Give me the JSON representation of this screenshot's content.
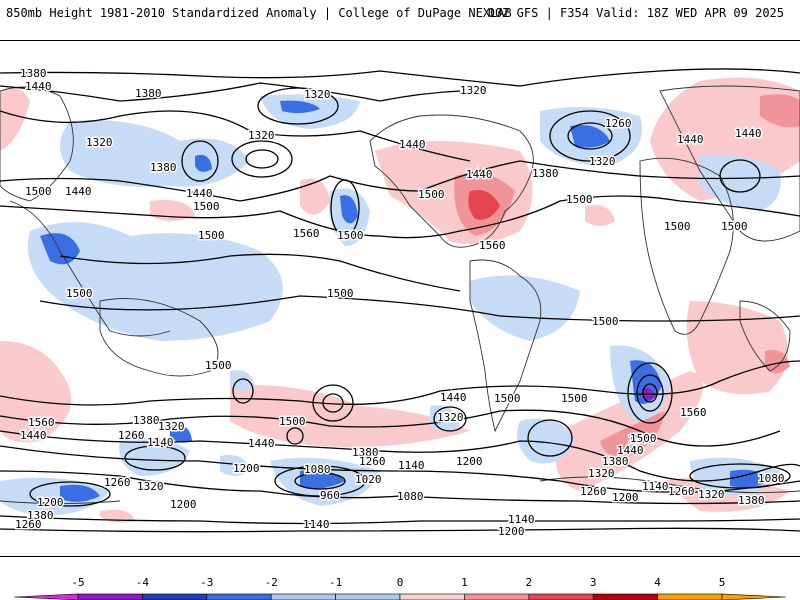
{
  "header": {
    "left": "850mb Height 1981-2010 Standardized Anomaly | College of DuPage NEXLAB",
    "right": "00Z GFS | F354 Valid: 18Z WED APR 09 2025"
  },
  "contour_labels": [
    {
      "text": "1380"
    },
    {
      "text": "1440"
    },
    {
      "text": "1380"
    },
    {
      "text": "1320"
    },
    {
      "text": "1320"
    },
    {
      "text": "1380"
    },
    {
      "text": "1320"
    },
    {
      "text": "1440"
    },
    {
      "text": "1500"
    },
    {
      "text": "1500"
    },
    {
      "text": "1440"
    },
    {
      "text": "1500"
    },
    {
      "text": "1560"
    },
    {
      "text": "1500"
    },
    {
      "text": "1320"
    },
    {
      "text": "1440"
    },
    {
      "text": "1500"
    },
    {
      "text": "1440"
    },
    {
      "text": "1560"
    },
    {
      "text": "1260"
    },
    {
      "text": "1320"
    },
    {
      "text": "1380"
    },
    {
      "text": "1500"
    },
    {
      "text": "1440"
    },
    {
      "text": "1440"
    },
    {
      "text": "1500"
    },
    {
      "text": "1500"
    },
    {
      "text": "1500"
    },
    {
      "text": "1500"
    },
    {
      "text": "1500"
    },
    {
      "text": "1500"
    },
    {
      "text": "1560"
    },
    {
      "text": "1440"
    },
    {
      "text": "1380"
    },
    {
      "text": "1320"
    },
    {
      "text": "1260"
    },
    {
      "text": "1140"
    },
    {
      "text": "1200"
    },
    {
      "text": "1260"
    },
    {
      "text": "1320"
    },
    {
      "text": "1200"
    },
    {
      "text": "1380"
    },
    {
      "text": "1260"
    },
    {
      "text": "1200"
    },
    {
      "text": "1080"
    },
    {
      "text": "1020"
    },
    {
      "text": "960"
    },
    {
      "text": "1080"
    },
    {
      "text": "1140"
    },
    {
      "text": "1500"
    },
    {
      "text": "1440"
    },
    {
      "text": "1440"
    },
    {
      "text": "1380"
    },
    {
      "text": "1260"
    },
    {
      "text": "1140"
    },
    {
      "text": "1320"
    },
    {
      "text": "1200"
    },
    {
      "text": "1500"
    },
    {
      "text": "1440"
    },
    {
      "text": "1380"
    },
    {
      "text": "1320"
    },
    {
      "text": "1260"
    },
    {
      "text": "1200"
    },
    {
      "text": "1140"
    },
    {
      "text": "1260"
    },
    {
      "text": "1320"
    },
    {
      "text": "1080"
    },
    {
      "text": "1380"
    },
    {
      "text": "1560"
    },
    {
      "text": "1500"
    },
    {
      "text": "1140"
    },
    {
      "text": "1200"
    },
    {
      "text": "1500"
    },
    {
      "text": "1500"
    }
  ],
  "colorbar": {
    "ticks": [
      "-5",
      "-4",
      "-3",
      "-2",
      "-1",
      "0",
      "1",
      "2",
      "3",
      "4",
      "5"
    ],
    "colors": [
      "#d22fd6",
      "#8f1bc6",
      "#1e3fc0",
      "#3a6fe3",
      "#a9c8f2",
      "#ffffff",
      "#fbd0d2",
      "#f1949a",
      "#e6454f",
      "#b3000c",
      "#f7a100"
    ]
  }
}
